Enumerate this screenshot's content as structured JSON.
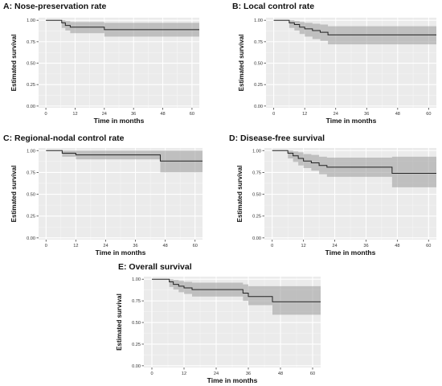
{
  "chart_data": [
    {
      "type": "line",
      "title": "A: Nose-preservation rate",
      "xlabel": "Time in months",
      "ylabel": "Estimated survival",
      "xlim": [
        -3,
        63
      ],
      "ylim": [
        -0.02,
        1.03
      ],
      "xticks": [
        "0",
        "12",
        "24",
        "36",
        "48",
        "60"
      ],
      "yticks": [
        "0.00",
        "0.25",
        "0.50",
        "0.75",
        "1.00"
      ],
      "grid": true,
      "steps": {
        "x": [
          0,
          6.5,
          8,
          10,
          24,
          63
        ],
        "y": [
          1.0,
          0.97,
          0.94,
          0.92,
          0.89,
          0.89
        ]
      },
      "ci_upper": {
        "x": [
          0,
          6.5,
          8,
          10,
          24,
          63
        ],
        "y": [
          1.0,
          1.0,
          0.99,
          0.98,
          0.97,
          0.97
        ]
      },
      "ci_lower": {
        "x": [
          0,
          6.5,
          8,
          10,
          24,
          63
        ],
        "y": [
          1.0,
          0.91,
          0.88,
          0.85,
          0.81,
          0.81
        ]
      }
    },
    {
      "type": "line",
      "title": "B: Local control rate",
      "xlabel": "Time in months",
      "ylabel": "Estimated survival",
      "xlim": [
        -3,
        63
      ],
      "ylim": [
        -0.02,
        1.03
      ],
      "xticks": [
        "0",
        "12",
        "24",
        "36",
        "48",
        "60"
      ],
      "yticks": [
        "0.00",
        "0.25",
        "0.50",
        "0.75",
        "1.00"
      ],
      "grid": true,
      "steps": {
        "x": [
          0,
          6,
          8,
          10,
          12,
          15,
          18,
          21,
          63
        ],
        "y": [
          1.0,
          0.97,
          0.95,
          0.92,
          0.9,
          0.88,
          0.86,
          0.83,
          0.83
        ]
      },
      "ci_upper": {
        "x": [
          0,
          6,
          8,
          10,
          12,
          15,
          18,
          21,
          63
        ],
        "y": [
          1.0,
          1.0,
          0.99,
          0.98,
          0.97,
          0.96,
          0.95,
          0.93,
          0.93
        ]
      },
      "ci_lower": {
        "x": [
          0,
          6,
          8,
          10,
          12,
          15,
          18,
          21,
          63
        ],
        "y": [
          1.0,
          0.91,
          0.88,
          0.84,
          0.81,
          0.78,
          0.76,
          0.72,
          0.72
        ]
      }
    },
    {
      "type": "line",
      "title": "C: Regional-nodal control rate",
      "xlabel": "Time in months",
      "ylabel": "Estimated survival",
      "xlim": [
        -3,
        63
      ],
      "ylim": [
        -0.02,
        1.03
      ],
      "xticks": [
        "0",
        "12",
        "24",
        "36",
        "48",
        "60"
      ],
      "yticks": [
        "0.00",
        "0.25",
        "0.50",
        "0.75",
        "1.00"
      ],
      "grid": true,
      "steps": {
        "x": [
          0,
          6.5,
          12,
          46,
          63
        ],
        "y": [
          1.0,
          0.97,
          0.95,
          0.88,
          0.88
        ]
      },
      "ci_upper": {
        "x": [
          0,
          6.5,
          12,
          46,
          63
        ],
        "y": [
          1.0,
          1.0,
          1.0,
          1.0,
          1.0
        ]
      },
      "ci_lower": {
        "x": [
          0,
          6.5,
          12,
          46,
          63
        ],
        "y": [
          1.0,
          0.93,
          0.9,
          0.75,
          0.75
        ]
      }
    },
    {
      "type": "line",
      "title": "D: Disease-free survival",
      "xlabel": "Time in months",
      "ylabel": "Estimated survival",
      "xlim": [
        -3,
        63
      ],
      "ylim": [
        -0.02,
        1.03
      ],
      "xticks": [
        "0",
        "12",
        "24",
        "36",
        "48",
        "60"
      ],
      "yticks": [
        "0.00",
        "0.25",
        "0.50",
        "0.75",
        "1.00"
      ],
      "grid": true,
      "steps": {
        "x": [
          0,
          6,
          8,
          10,
          12,
          15,
          18,
          21,
          46,
          63
        ],
        "y": [
          1.0,
          0.97,
          0.94,
          0.91,
          0.88,
          0.86,
          0.83,
          0.81,
          0.74,
          0.74
        ]
      },
      "ci_upper": {
        "x": [
          0,
          6,
          8,
          10,
          12,
          15,
          18,
          21,
          46,
          63
        ],
        "y": [
          1.0,
          1.0,
          0.99,
          0.98,
          0.96,
          0.95,
          0.93,
          0.92,
          0.93,
          0.93
        ]
      },
      "ci_lower": {
        "x": [
          0,
          6,
          8,
          10,
          12,
          15,
          18,
          21,
          46,
          63
        ],
        "y": [
          1.0,
          0.91,
          0.87,
          0.83,
          0.8,
          0.77,
          0.73,
          0.7,
          0.58,
          0.58
        ]
      }
    },
    {
      "type": "line",
      "title": "E: Overall survival",
      "xlabel": "Time in months",
      "ylabel": "Estimated survival",
      "xlim": [
        -3,
        63
      ],
      "ylim": [
        -0.02,
        1.03
      ],
      "xticks": [
        "0",
        "12",
        "24",
        "36",
        "48",
        "60"
      ],
      "yticks": [
        "0.00",
        "0.25",
        "0.50",
        "0.75",
        "1.00"
      ],
      "grid": true,
      "steps": {
        "x": [
          0,
          6.5,
          8,
          10,
          12,
          15,
          34,
          36,
          45,
          63
        ],
        "y": [
          1.0,
          0.97,
          0.94,
          0.92,
          0.9,
          0.88,
          0.84,
          0.8,
          0.74,
          0.74
        ]
      },
      "ci_upper": {
        "x": [
          0,
          6.5,
          8,
          10,
          12,
          15,
          34,
          36,
          45,
          63
        ],
        "y": [
          1.0,
          1.0,
          0.99,
          0.98,
          0.97,
          0.96,
          0.94,
          0.92,
          0.92,
          0.92
        ]
      },
      "ci_lower": {
        "x": [
          0,
          6.5,
          8,
          10,
          12,
          15,
          34,
          36,
          45,
          63
        ],
        "y": [
          1.0,
          0.91,
          0.88,
          0.85,
          0.83,
          0.8,
          0.75,
          0.7,
          0.59,
          0.59
        ]
      }
    }
  ]
}
